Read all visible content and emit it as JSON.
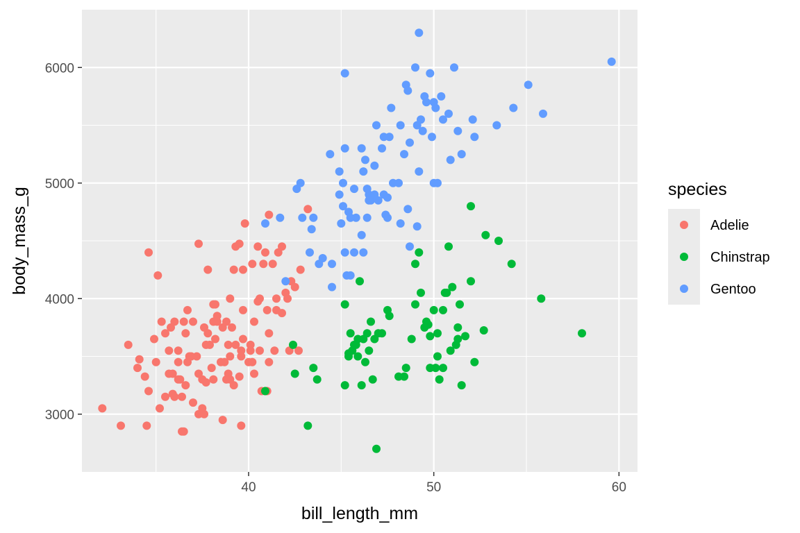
{
  "chart_data": {
    "type": "scatter",
    "title": "",
    "xlabel": "bill_length_mm",
    "ylabel": "body_mass_g",
    "xlim": [
      31.0,
      61.0
    ],
    "ylim": [
      2500,
      6500
    ],
    "x_ticks": [
      40,
      50,
      60
    ],
    "y_ticks": [
      3000,
      4000,
      5000,
      6000
    ],
    "x_tick_labels": [
      "40",
      "50",
      "60"
    ],
    "y_tick_labels": [
      "3000",
      "4000",
      "5000",
      "6000"
    ],
    "grid": true,
    "legend": {
      "title": "species",
      "placement": "right",
      "entries": [
        "Adelie",
        "Chinstrap",
        "Gentoo"
      ]
    },
    "colors": {
      "Adelie": "#F8766D",
      "Chinstrap": "#00BA38",
      "Gentoo": "#619CFF",
      "panel": "#EBEBEB",
      "grid": "#FFFFFF"
    },
    "series": [
      {
        "name": "Adelie",
        "points": [
          [
            32.1,
            3050
          ],
          [
            33.1,
            2900
          ],
          [
            33.5,
            3600
          ],
          [
            34.0,
            3400
          ],
          [
            34.1,
            3475
          ],
          [
            34.4,
            3325
          ],
          [
            34.5,
            2900
          ],
          [
            34.6,
            3200
          ],
          [
            34.6,
            4400
          ],
          [
            35.0,
            3450
          ],
          [
            35.1,
            4200
          ],
          [
            35.2,
            3050
          ],
          [
            35.3,
            3800
          ],
          [
            35.5,
            3700
          ],
          [
            35.7,
            3350
          ],
          [
            35.7,
            3550
          ],
          [
            35.9,
            3350
          ],
          [
            35.9,
            3175
          ],
          [
            36.0,
            3150
          ],
          [
            36.0,
            3800
          ],
          [
            36.2,
            3450
          ],
          [
            36.2,
            3550
          ],
          [
            36.3,
            3300
          ],
          [
            36.4,
            3150
          ],
          [
            36.4,
            2850
          ],
          [
            36.5,
            3800
          ],
          [
            36.6,
            3700
          ],
          [
            36.6,
            3250
          ],
          [
            36.7,
            3450
          ],
          [
            36.8,
            3500
          ],
          [
            37.0,
            3800
          ],
          [
            37.2,
            3500
          ],
          [
            37.3,
            3000
          ],
          [
            37.3,
            3350
          ],
          [
            37.5,
            3300
          ],
          [
            37.6,
            3750
          ],
          [
            37.7,
            3600
          ],
          [
            37.8,
            3700
          ],
          [
            37.8,
            4250
          ],
          [
            37.9,
            3600
          ],
          [
            38.1,
            3800
          ],
          [
            38.1,
            3950
          ],
          [
            38.2,
            3950
          ],
          [
            38.3,
            3800
          ],
          [
            38.6,
            2950
          ],
          [
            38.6,
            3750
          ],
          [
            38.7,
            3450
          ],
          [
            38.8,
            3300
          ],
          [
            38.9,
            3600
          ],
          [
            39.0,
            4000
          ],
          [
            39.1,
            3750
          ],
          [
            39.2,
            4250
          ],
          [
            39.3,
            3600
          ],
          [
            39.5,
            3325
          ],
          [
            39.5,
            4475
          ],
          [
            39.6,
            3500
          ],
          [
            39.6,
            3550
          ],
          [
            39.7,
            4250
          ],
          [
            39.7,
            3900
          ],
          [
            39.8,
            4650
          ],
          [
            40.1,
            3600
          ],
          [
            40.2,
            4300
          ],
          [
            40.3,
            3350
          ],
          [
            40.5,
            3975
          ],
          [
            40.6,
            3550
          ],
          [
            40.7,
            3200
          ],
          [
            40.8,
            4300
          ],
          [
            40.9,
            3200
          ],
          [
            41.1,
            3450
          ],
          [
            41.1,
            4725
          ],
          [
            41.3,
            4300
          ],
          [
            41.5,
            3900
          ],
          [
            41.6,
            4400
          ],
          [
            41.8,
            4450
          ],
          [
            42.0,
            4050
          ],
          [
            42.2,
            3550
          ],
          [
            42.3,
            4150
          ],
          [
            42.5,
            4100
          ],
          [
            42.8,
            4250
          ],
          [
            43.2,
            4775
          ],
          [
            37.5,
            3050
          ],
          [
            38.5,
            3450
          ],
          [
            39.0,
            3300
          ],
          [
            40.0,
            3450
          ],
          [
            41.0,
            3900
          ],
          [
            36.9,
            3500
          ],
          [
            35.5,
            3150
          ],
          [
            36.7,
            3900
          ],
          [
            38.2,
            3650
          ],
          [
            39.3,
            4450
          ],
          [
            40.6,
            4000
          ],
          [
            41.0,
            3200
          ],
          [
            38.0,
            3400
          ],
          [
            37.0,
            3100
          ],
          [
            35.8,
            3750
          ],
          [
            34.9,
            3650
          ],
          [
            37.3,
            4475
          ],
          [
            38.9,
            3350
          ],
          [
            40.9,
            4400
          ],
          [
            41.4,
            3550
          ],
          [
            39.6,
            2900
          ],
          [
            40.2,
            3450
          ],
          [
            36.2,
            3300
          ],
          [
            37.6,
            3000
          ],
          [
            38.8,
            3800
          ],
          [
            39.2,
            3250
          ],
          [
            40.5,
            4450
          ],
          [
            41.5,
            4000
          ],
          [
            36.5,
            2850
          ],
          [
            38.1,
            3300
          ],
          [
            39.7,
            3650
          ],
          [
            40.3,
            3800
          ],
          [
            41.1,
            3700
          ],
          [
            42.7,
            3550
          ],
          [
            42.1,
            4000
          ],
          [
            37.7,
            3275
          ],
          [
            38.3,
            3850
          ],
          [
            39.0,
            3500
          ],
          [
            40.1,
            3550
          ],
          [
            41.8,
            3875
          ]
        ]
      },
      {
        "name": "Chinstrap",
        "points": [
          [
            40.9,
            3200
          ],
          [
            42.4,
            3600
          ],
          [
            42.5,
            3350
          ],
          [
            43.2,
            2900
          ],
          [
            43.5,
            3400
          ],
          [
            45.2,
            3950
          ],
          [
            45.2,
            3250
          ],
          [
            45.4,
            3525
          ],
          [
            45.5,
            3700
          ],
          [
            45.6,
            3550
          ],
          [
            45.7,
            3600
          ],
          [
            45.9,
            3650
          ],
          [
            46.0,
            4150
          ],
          [
            46.1,
            3250
          ],
          [
            46.2,
            3650
          ],
          [
            46.4,
            3700
          ],
          [
            46.5,
            3550
          ],
          [
            46.6,
            3800
          ],
          [
            46.7,
            3300
          ],
          [
            46.8,
            3650
          ],
          [
            46.9,
            2700
          ],
          [
            47.0,
            3700
          ],
          [
            47.5,
            3900
          ],
          [
            47.6,
            3850
          ],
          [
            48.1,
            3325
          ],
          [
            48.5,
            3400
          ],
          [
            49.0,
            3950
          ],
          [
            49.2,
            4400
          ],
          [
            49.3,
            4050
          ],
          [
            49.6,
            3800
          ],
          [
            49.7,
            3775
          ],
          [
            49.8,
            3675
          ],
          [
            50.0,
            3900
          ],
          [
            50.1,
            3400
          ],
          [
            50.2,
            3500
          ],
          [
            50.3,
            3300
          ],
          [
            50.5,
            3400
          ],
          [
            50.6,
            4050
          ],
          [
            50.8,
            4450
          ],
          [
            50.9,
            3550
          ],
          [
            51.0,
            4100
          ],
          [
            51.3,
            3750
          ],
          [
            51.4,
            3950
          ],
          [
            51.5,
            3250
          ],
          [
            51.7,
            3675
          ],
          [
            52.0,
            4800
          ],
          [
            52.0,
            4150
          ],
          [
            52.2,
            3450
          ],
          [
            52.7,
            3725
          ],
          [
            53.5,
            4500
          ],
          [
            54.2,
            4300
          ],
          [
            55.8,
            4000
          ],
          [
            58.0,
            3700
          ],
          [
            45.4,
            3500
          ],
          [
            46.3,
            3450
          ],
          [
            47.2,
            3700
          ],
          [
            49.0,
            4300
          ],
          [
            50.2,
            3700
          ],
          [
            50.5,
            3900
          ],
          [
            51.3,
            3650
          ],
          [
            52.8,
            4550
          ],
          [
            48.4,
            3325
          ],
          [
            45.9,
            3500
          ],
          [
            49.5,
            3750
          ],
          [
            50.7,
            4050
          ],
          [
            43.7,
            3300
          ],
          [
            45.8,
            3600
          ],
          [
            49.8,
            3400
          ],
          [
            51.2,
            3600
          ],
          [
            48.8,
            3650
          ]
        ]
      },
      {
        "name": "Gentoo",
        "points": [
          [
            40.9,
            4650
          ],
          [
            41.7,
            4700
          ],
          [
            42.0,
            4150
          ],
          [
            42.6,
            4950
          ],
          [
            42.8,
            5000
          ],
          [
            42.9,
            4700
          ],
          [
            43.3,
            4400
          ],
          [
            43.4,
            4600
          ],
          [
            43.5,
            4700
          ],
          [
            43.8,
            4300
          ],
          [
            44.0,
            4350
          ],
          [
            44.4,
            5250
          ],
          [
            44.5,
            4100
          ],
          [
            44.9,
            5100
          ],
          [
            45.0,
            4650
          ],
          [
            45.1,
            5000
          ],
          [
            45.2,
            5300
          ],
          [
            45.2,
            5950
          ],
          [
            45.3,
            4200
          ],
          [
            45.4,
            4750
          ],
          [
            45.5,
            4200
          ],
          [
            45.7,
            4400
          ],
          [
            45.8,
            4700
          ],
          [
            46.1,
            5300
          ],
          [
            46.2,
            5100
          ],
          [
            46.3,
            5200
          ],
          [
            46.4,
            4700
          ],
          [
            46.5,
            4900
          ],
          [
            46.6,
            4850
          ],
          [
            46.8,
            5150
          ],
          [
            46.9,
            5500
          ],
          [
            47.2,
            5300
          ],
          [
            47.3,
            4900
          ],
          [
            47.4,
            4725
          ],
          [
            47.5,
            4875
          ],
          [
            47.6,
            5400
          ],
          [
            47.7,
            5650
          ],
          [
            48.1,
            5000
          ],
          [
            48.2,
            5500
          ],
          [
            48.4,
            5250
          ],
          [
            48.5,
            5850
          ],
          [
            48.6,
            5800
          ],
          [
            48.7,
            5350
          ],
          [
            49.0,
            6000
          ],
          [
            49.1,
            5500
          ],
          [
            49.2,
            5100
          ],
          [
            49.3,
            5550
          ],
          [
            49.5,
            5750
          ],
          [
            49.6,
            5700
          ],
          [
            49.8,
            5950
          ],
          [
            49.9,
            5400
          ],
          [
            50.0,
            5700
          ],
          [
            50.1,
            5650
          ],
          [
            50.2,
            5000
          ],
          [
            50.4,
            5750
          ],
          [
            50.5,
            5550
          ],
          [
            50.8,
            5600
          ],
          [
            51.1,
            6000
          ],
          [
            51.3,
            5450
          ],
          [
            51.5,
            5250
          ],
          [
            52.1,
            5550
          ],
          [
            52.2,
            5400
          ],
          [
            53.4,
            5500
          ],
          [
            54.3,
            5650
          ],
          [
            55.1,
            5850
          ],
          [
            55.9,
            5600
          ],
          [
            59.6,
            6050
          ],
          [
            49.2,
            6300
          ],
          [
            46.5,
            4850
          ],
          [
            47.0,
            4850
          ],
          [
            44.9,
            4900
          ],
          [
            45.1,
            4800
          ],
          [
            45.5,
            4700
          ],
          [
            46.1,
            4550
          ],
          [
            46.8,
            4900
          ],
          [
            47.5,
            4700
          ],
          [
            48.2,
            4650
          ],
          [
            48.7,
            4450
          ],
          [
            49.1,
            4625
          ],
          [
            45.2,
            4400
          ],
          [
            46.4,
            4950
          ],
          [
            47.8,
            5000
          ],
          [
            48.6,
            4775
          ],
          [
            49.4,
            5450
          ],
          [
            50.0,
            5000
          ],
          [
            50.9,
            5200
          ],
          [
            44.5,
            4300
          ],
          [
            45.7,
            4950
          ],
          [
            46.2,
            4400
          ],
          [
            47.3,
            5400
          ]
        ]
      }
    ]
  }
}
